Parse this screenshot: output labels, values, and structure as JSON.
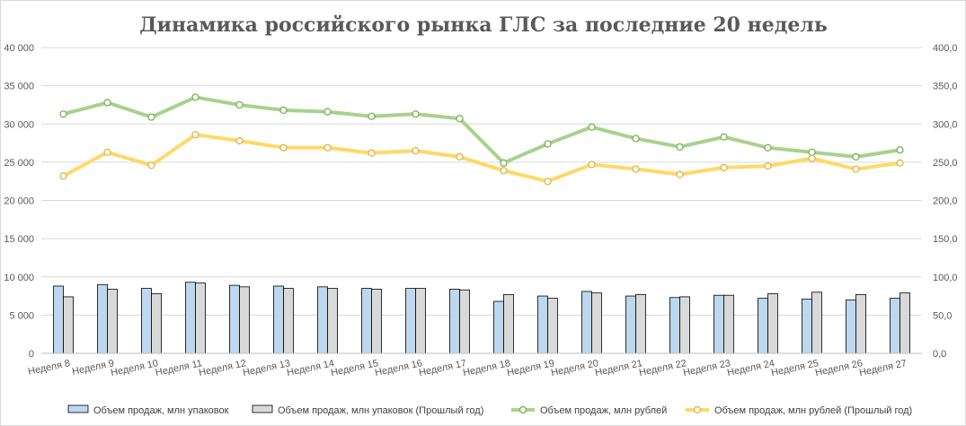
{
  "chart_data": {
    "type": "bar+line",
    "title": "Динамика российского рынка ГЛС за последние 20 недель",
    "categories": [
      "Неделя 8",
      "Неделя 9",
      "Неделя 10",
      "Неделя 11",
      "Неделя 12",
      "Неделя 13",
      "Неделя 14",
      "Неделя 15",
      "Неделя 16",
      "Неделя 17",
      "Неделя 18",
      "Неделя 19",
      "Неделя 20",
      "Неделя 21",
      "Неделя 22",
      "Неделя 23",
      "Неделя 24",
      "Неделя 25",
      "Неделя 26",
      "Неделя 27"
    ],
    "left_axis": {
      "ticks": [
        "0",
        "5 000",
        "10 000",
        "15 000",
        "20 000",
        "25 000",
        "30 000",
        "35 000",
        "40 000"
      ],
      "range": [
        0,
        40000
      ]
    },
    "right_axis": {
      "ticks": [
        "0,0",
        "50,0",
        "100,0",
        "150,0",
        "200,0",
        "250,0",
        "300,0",
        "350,0",
        "400,0"
      ],
      "range": [
        0,
        400
      ]
    },
    "grid": true,
    "legend_position": "bottom",
    "series": [
      {
        "name": "Объем продаж, млн упаковок",
        "kind": "bar",
        "axis": "left",
        "color": "#bdd7ee",
        "stroke": "#000000",
        "values": [
          8800,
          9000,
          8500,
          9300,
          8900,
          8800,
          8700,
          8500,
          8500,
          8400,
          6800,
          7500,
          8100,
          7500,
          7300,
          7600,
          7200,
          7100,
          7000,
          7200
        ]
      },
      {
        "name": "Объем продаж, млн упаковок (Прошлый год)",
        "kind": "bar",
        "axis": "left",
        "color": "#d9d9d9",
        "stroke": "#000000",
        "values": [
          7400,
          8400,
          7800,
          9200,
          8700,
          8500,
          8500,
          8400,
          8500,
          8300,
          7700,
          7200,
          7900,
          7700,
          7400,
          7600,
          7800,
          8000,
          7700,
          7900
        ]
      },
      {
        "name": "Объем продаж, млн рублей",
        "kind": "line",
        "axis": "right",
        "color": "#a9d18e",
        "values": [
          313,
          328,
          309,
          335,
          325,
          318,
          316,
          310,
          313,
          307,
          249,
          274,
          296,
          281,
          270,
          283,
          269,
          263,
          257,
          266
        ]
      },
      {
        "name": "Объем продаж, млн рублей (Прошлый год)",
        "kind": "line",
        "axis": "right",
        "color": "#ffd966",
        "values": [
          232,
          263,
          246,
          286,
          278,
          269,
          269,
          262,
          265,
          257,
          239,
          225,
          247,
          241,
          234,
          243,
          245,
          255,
          241,
          249
        ]
      }
    ]
  }
}
